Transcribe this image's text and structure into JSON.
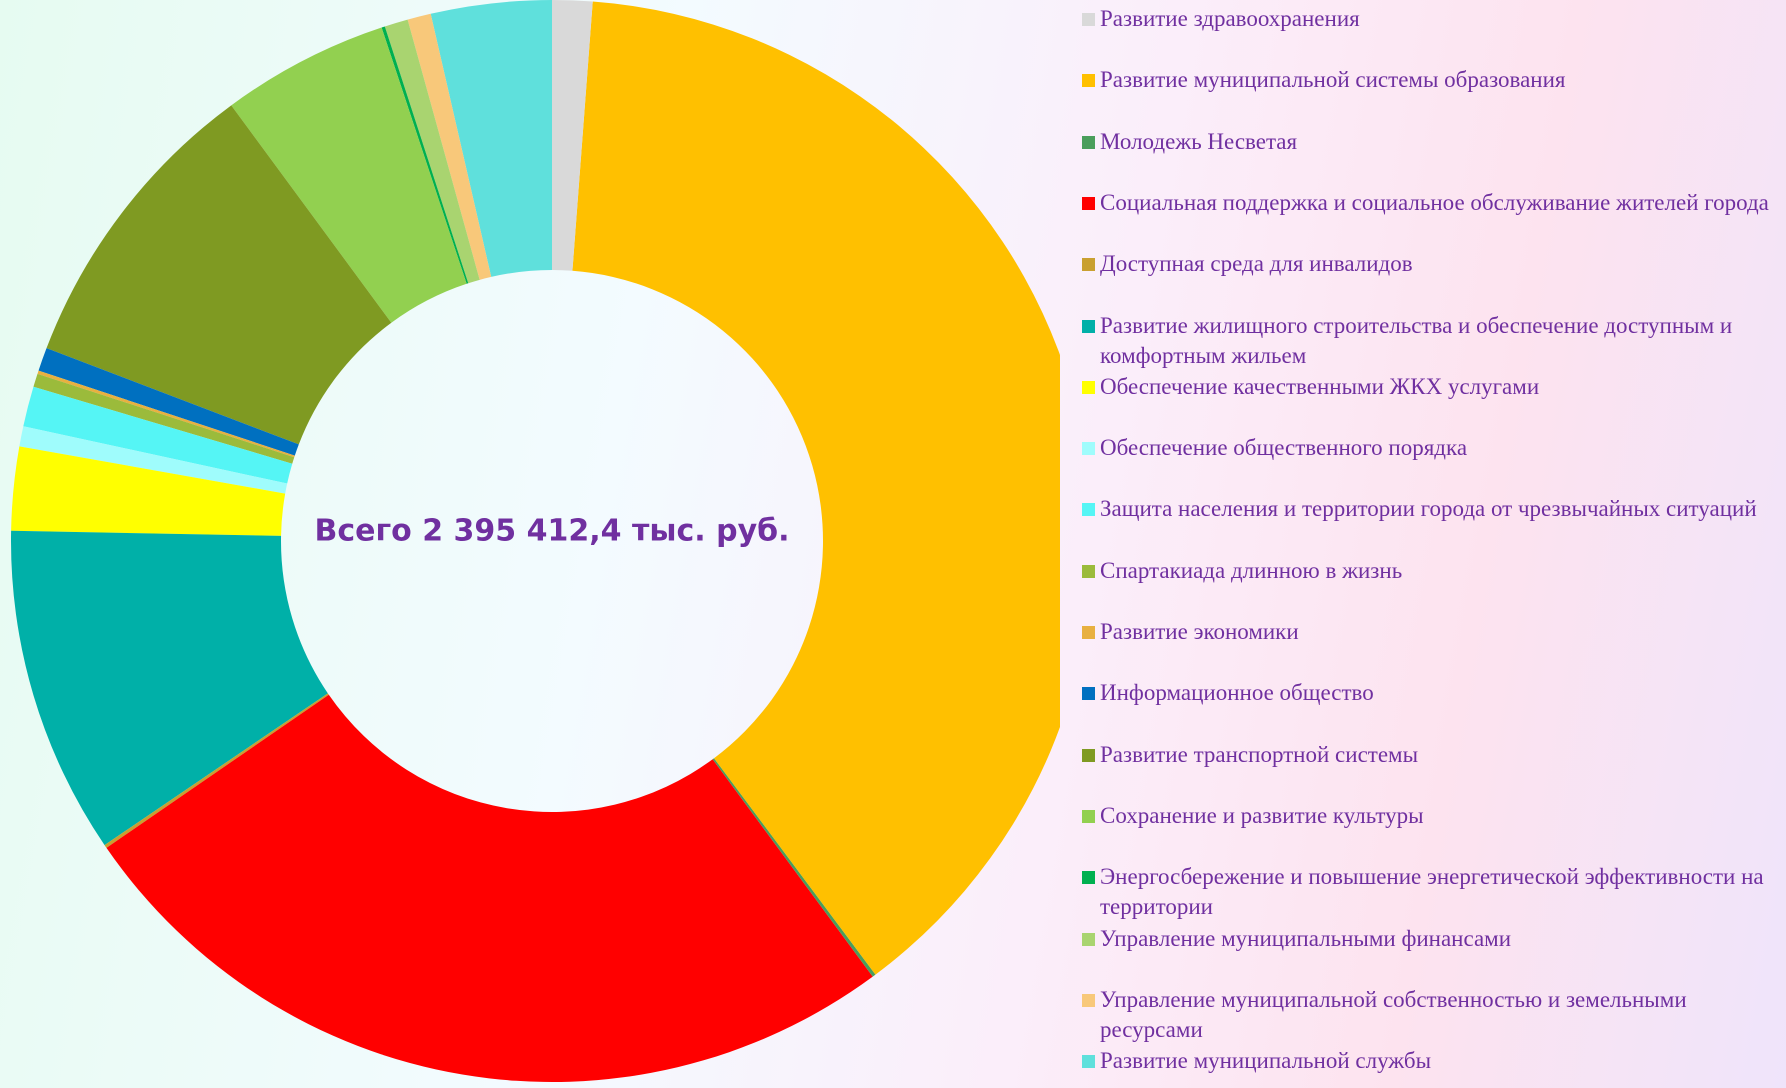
{
  "chart_data": {
    "type": "donut",
    "center_label": "Всего 2 395 412,4 тыс. руб.",
    "categories": [
      "Развитие здравоохранения",
      "Развитие муниципальной системы образования",
      "Молодежь  Несветая",
      "Социальная поддержка и социальное обслуживание жителей города",
      "Доступная среда для инвалидов",
      "Развитие жилищного строительства и обеспечение доступным и комфортным жильем",
      "Обеспечение качественными ЖКХ услугами",
      "Обеспечение общественного порядка",
      "Защита населения и территории города от чрезвычайных ситуаций",
      "Спартакиада длинною в жизнь",
      "Развитие экономики",
      "Информационное общество",
      "Развитие транспортной системы",
      "Сохранение и развитие культуры",
      "Энергосбережение и повышение энергетической эффективности на территории",
      "Управление муниципальными финансами",
      "Управление муниципальной собственностью и земельными ресурсами",
      "Развитие муниципальной службы"
    ],
    "values": [
      1.2,
      38.6,
      0.1,
      25.5,
      0.1,
      9.8,
      2.5,
      0.6,
      1.2,
      0.4,
      0.1,
      0.7,
      9.1,
      5.0,
      0.1,
      0.7,
      0.7,
      3.6
    ],
    "colors": [
      "#d9d9d9",
      "#ffc000",
      "#4a9e5c",
      "#ff0000",
      "#c9a030",
      "#00b0a8",
      "#ffff00",
      "#9ffcfc",
      "#55f5f5",
      "#9bbb3b",
      "#e8b040",
      "#0070c0",
      "#7f9a22",
      "#92d050",
      "#00b050",
      "#a9d470",
      "#f8c87a",
      "#5fe0dc"
    ],
    "legend": "right"
  }
}
